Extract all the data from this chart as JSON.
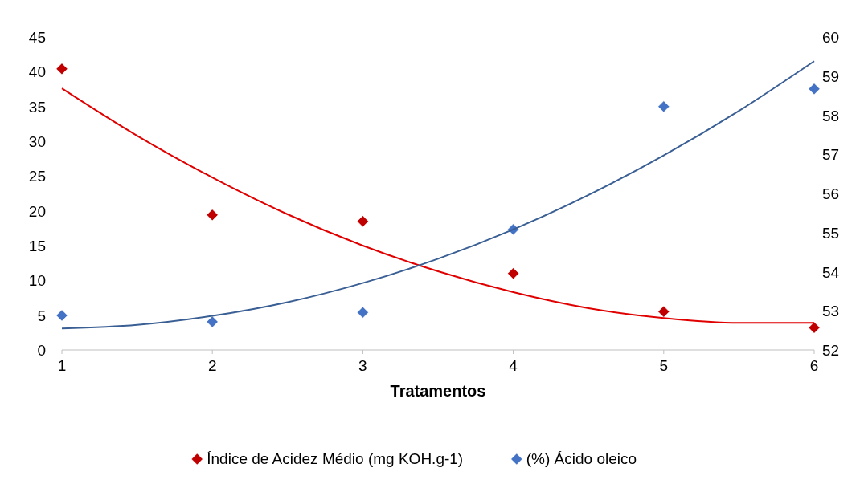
{
  "chart_data": {
    "type": "scatter",
    "xlabel": "Tratamentos",
    "x": [
      1,
      2,
      3,
      4,
      5,
      6
    ],
    "xlim": [
      1,
      6
    ],
    "xticks": [
      1,
      2,
      3,
      4,
      5,
      6
    ],
    "ylim": [
      0,
      45
    ],
    "yticks": [
      0,
      5,
      10,
      15,
      20,
      25,
      30,
      35,
      40,
      45
    ],
    "y2lim": [
      52,
      60
    ],
    "y2ticks": [
      52,
      53,
      54,
      55,
      56,
      57,
      58,
      59,
      60
    ],
    "grid": false,
    "legend": "bottom",
    "marker": "diamond",
    "series": [
      {
        "name": "Índice de Acidez Médio (mg KOH.g-1)",
        "color": "#c00000",
        "values": [
          40.4,
          19.4,
          18.5,
          11,
          5.5,
          3.2
        ]
      },
      {
        "name": "(%) Ácido oleico",
        "color": "#4472c4",
        "axis": "y2",
        "values": [
          52.88,
          52.72,
          52.96,
          55.08,
          58.22,
          58.67
        ]
      },
      {
        "type": "line",
        "color": "#e00000",
        "marker": "none",
        "x": [
          1,
          1.5,
          2,
          2.5,
          3,
          3.5,
          4,
          4.5,
          5,
          5.5,
          6
        ],
        "values": [
          37.6,
          30.8,
          24.8,
          19.5,
          15.0,
          11.3,
          8.3,
          6.0,
          4.6,
          3.9,
          3.9
        ]
      },
      {
        "type": "line",
        "color": "#3a5f94",
        "marker": "none",
        "axis": "y2",
        "x": [
          1,
          1.5,
          2,
          2.5,
          3,
          3.5,
          4,
          4.5,
          5,
          5.5,
          6
        ],
        "values": [
          52.55,
          52.64,
          52.87,
          53.22,
          53.71,
          54.33,
          55.08,
          55.96,
          56.97,
          58.11,
          59.38
        ]
      }
    ]
  }
}
